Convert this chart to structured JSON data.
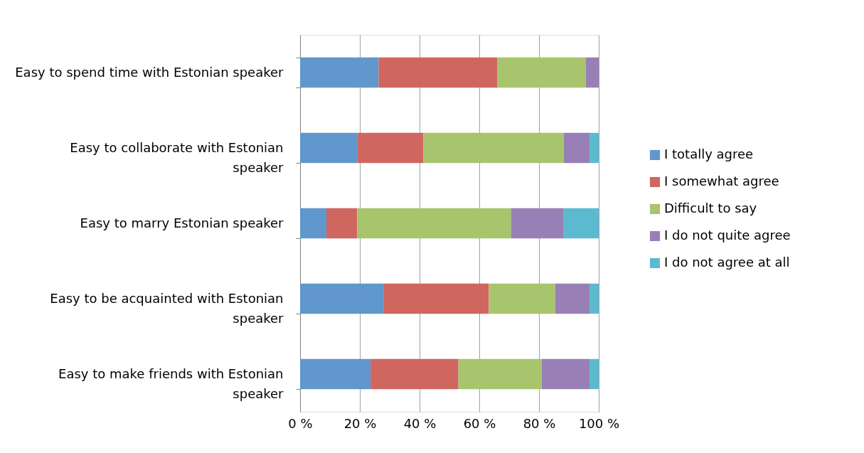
{
  "chart_data": {
    "type": "bar",
    "orientation": "horizontal",
    "stacked": true,
    "categories": [
      "Easy to spend time with Estonian speaker",
      "Easy to collaborate with Estonian speaker",
      "Easy to marry Estonian speaker",
      "Easy to be acquainted with Estonian speaker",
      "Easy to make friends with Estonian speaker"
    ],
    "series": [
      {
        "name": "I totally agree",
        "color": "#6097cc",
        "values": [
          26.3,
          19.1,
          8.8,
          27.9,
          23.6
        ]
      },
      {
        "name": "I somewhat agree",
        "color": "#cf6660",
        "values": [
          39.8,
          22.2,
          10.3,
          35.3,
          29.4
        ]
      },
      {
        "name": "Difficult to say",
        "color": "#a8c46c",
        "values": [
          29.6,
          47.0,
          51.5,
          22.2,
          27.9
        ]
      },
      {
        "name": "I do not quite agree",
        "color": "#9880b6",
        "values": [
          4.3,
          8.6,
          17.5,
          11.5,
          16.0
        ]
      },
      {
        "name": "I do not agree at all",
        "color": "#5cbad0",
        "values": [
          0,
          3.1,
          11.9,
          3.1,
          3.1
        ]
      }
    ],
    "xlim": [
      0,
      100
    ],
    "xticks": [
      {
        "value": 0,
        "label": "0 %"
      },
      {
        "value": 20,
        "label": "20 %"
      },
      {
        "value": 40,
        "label": "40 %"
      },
      {
        "value": 60,
        "label": "60 %"
      },
      {
        "value": 80,
        "label": "80 %"
      },
      {
        "value": 100,
        "label": "100 %"
      }
    ],
    "grid": "x",
    "legend": "right"
  }
}
